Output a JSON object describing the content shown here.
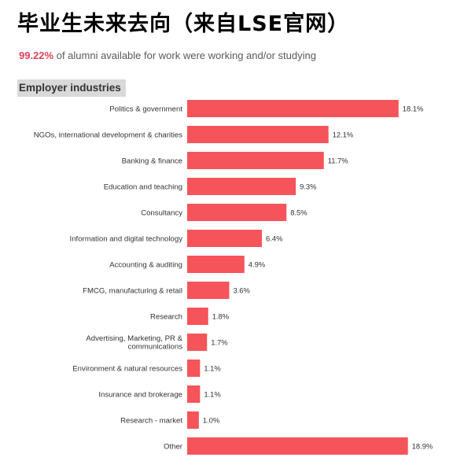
{
  "header": {
    "title": "毕业生未来去向（来自LSE官网）",
    "stat_value": "99.22%",
    "stat_text": "of alumni available for work were working and/or studying",
    "section_label": "Employer industries"
  },
  "colors": {
    "bar": "#f4545a",
    "highlight": "#e0405a"
  },
  "chart_data": {
    "type": "bar",
    "orientation": "horizontal",
    "title": "Employer industries",
    "unit": "%",
    "grid": false,
    "categories": [
      "Politics & government",
      "NGOs, international development & charities",
      "Banking & finance",
      "Education and teaching",
      "Consultancy",
      "Information and digital technology",
      "Accounting & auditing",
      "FMCG, manufacturing & retail",
      "Research",
      "Advertising, Marketing, PR & communications",
      "Environment & natural resources",
      "Insurance and brokerage",
      "Research - market",
      "Other"
    ],
    "values": [
      18.1,
      12.1,
      11.7,
      9.3,
      8.5,
      6.4,
      4.9,
      3.6,
      1.8,
      1.7,
      1.1,
      1.1,
      1.0,
      18.9
    ],
    "value_labels": [
      "18.1%",
      "12.1%",
      "11.7%",
      "9.3%",
      "8.5%",
      "6.4%",
      "4.9%",
      "3.6%",
      "1.8%",
      "1.7%",
      "1.1%",
      "1.1%",
      "1.0%",
      "18.9%"
    ]
  }
}
